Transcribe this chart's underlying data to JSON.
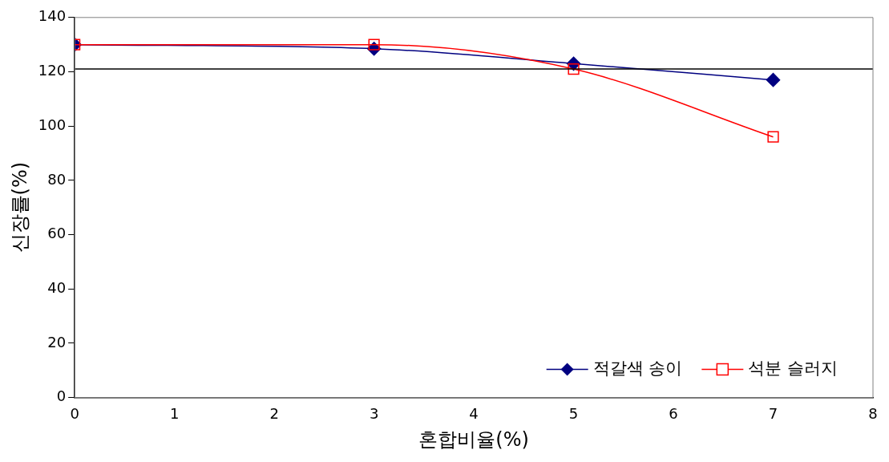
{
  "chart_data": {
    "type": "line",
    "xlabel": "혼합비율(%)",
    "ylabel": "신장률(%)",
    "x": [
      0,
      3,
      5,
      7
    ],
    "series": [
      {
        "name": "적갈색 송이",
        "color": "#000080",
        "marker": "diamond",
        "values": [
          130,
          128.5,
          123,
          117
        ]
      },
      {
        "name": "석분 슬러지",
        "color": "#ff0000",
        "marker": "square",
        "values": [
          130,
          130,
          121,
          96
        ]
      }
    ],
    "xlim": [
      0,
      8
    ],
    "xticks": [
      0,
      1,
      2,
      3,
      4,
      5,
      6,
      7,
      8
    ],
    "ylim": [
      0,
      140
    ],
    "yticks": [
      0,
      20,
      40,
      60,
      80,
      100,
      120,
      140
    ],
    "ref_lines": [
      {
        "axis": "y",
        "value": 121,
        "color": "#000000"
      }
    ],
    "grid": false,
    "legend": "bottom right"
  }
}
